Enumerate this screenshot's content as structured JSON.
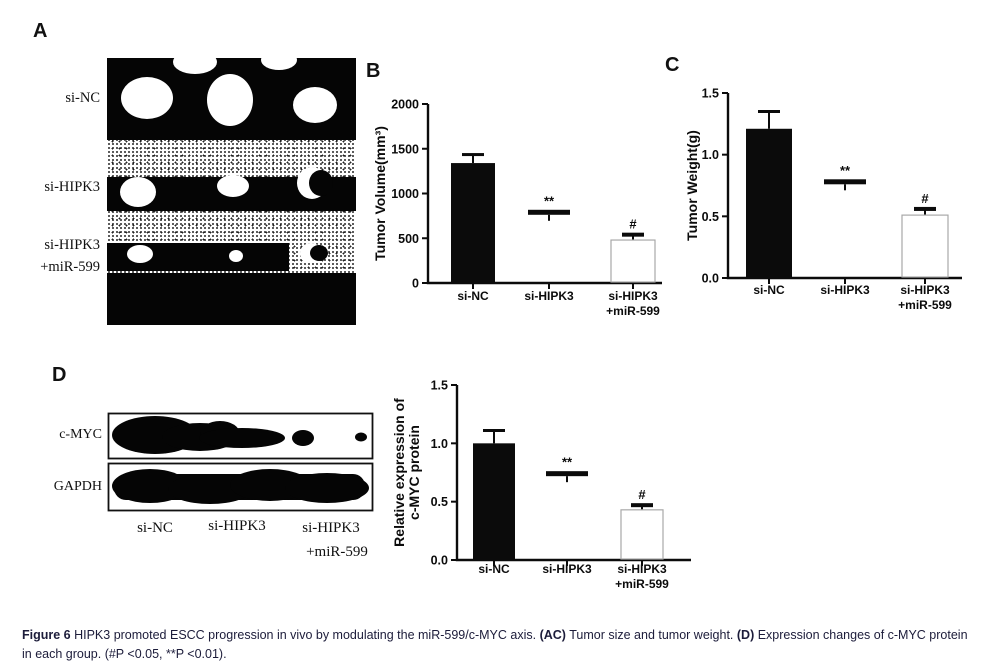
{
  "colors": {
    "ink": "#0b0b0b",
    "caption_text": "#1c1c3a",
    "open_bar_outline": "#a8a8a8"
  },
  "panel_a": {
    "letter": "A",
    "row_labels": [
      "si-NC",
      "si-HIPK3",
      "si-HIPK3",
      "+miR-599"
    ]
  },
  "panel_b": {
    "letter": "B"
  },
  "panel_c": {
    "letter": "C"
  },
  "panel_d": {
    "letter": "D",
    "blot_row_labels": [
      "c-MYC",
      "GAPDH"
    ],
    "lane_labels": [
      "si-NC",
      "si-HIPK3",
      "si-HIPK3",
      "+miR-599"
    ]
  },
  "caption": {
    "segments": [
      {
        "text": "Figure 6",
        "bold": true
      },
      {
        "text": " HIPK3 promoted ESCC progression in vivo by modulating the miR-599/c-MYC axis. ",
        "bold": false
      },
      {
        "text": "(AC)",
        "bold": true
      },
      {
        "text": " Tumor size and tumor weight. ",
        "bold": false
      },
      {
        "text": "(D)",
        "bold": true
      },
      {
        "text": " Expression changes of c-MYC protein in each group. (#P <0.05, **P <0.01).",
        "bold": false
      }
    ]
  },
  "chart_data": [
    {
      "panel": "B",
      "type": "bar",
      "categories": [
        "si-NC",
        "si-HIPK3",
        "si-HIPK3\n+miR-599"
      ],
      "values": [
        1340,
        790,
        480
      ],
      "errors": [
        95,
        25,
        60
      ],
      "significance": [
        "",
        "**",
        "#"
      ],
      "bar_styles": [
        "filled",
        "mean-line",
        "open"
      ],
      "ylabel": "Tumor Volume(mm³)",
      "ylim": [
        0,
        2000
      ],
      "yticks": [
        "0",
        "500",
        "1000",
        "1500",
        "2000"
      ],
      "grid": false,
      "legend": null
    },
    {
      "panel": "C",
      "type": "bar",
      "categories": [
        "si-NC",
        "si-HIPK3",
        "si-HIPK3\n+miR-599"
      ],
      "values": [
        1.21,
        0.78,
        0.51
      ],
      "errors": [
        0.14,
        0.03,
        0.05
      ],
      "significance": [
        "",
        "**",
        "#"
      ],
      "bar_styles": [
        "filled",
        "mean-line",
        "open"
      ],
      "ylabel": "Tumor Weight(g)",
      "ylim": [
        0,
        1.5
      ],
      "yticks": [
        "0.0",
        "0.5",
        "1.0",
        "1.5"
      ],
      "grid": false,
      "legend": null
    },
    {
      "panel": "D",
      "type": "bar",
      "categories": [
        "si-NC",
        "si-HIPK3",
        "si-HIPK3\n+miR-599"
      ],
      "values": [
        1.0,
        0.74,
        0.43
      ],
      "errors": [
        0.11,
        0.03,
        0.04
      ],
      "significance": [
        "",
        "**",
        "#"
      ],
      "bar_styles": [
        "filled",
        "mean-line",
        "open"
      ],
      "ylabel": "Relative expression of\nc-MYC protein",
      "ylim": [
        0,
        1.5
      ],
      "yticks": [
        "0.0",
        "0.5",
        "1.0",
        "1.5"
      ],
      "grid": false,
      "legend": null
    }
  ]
}
